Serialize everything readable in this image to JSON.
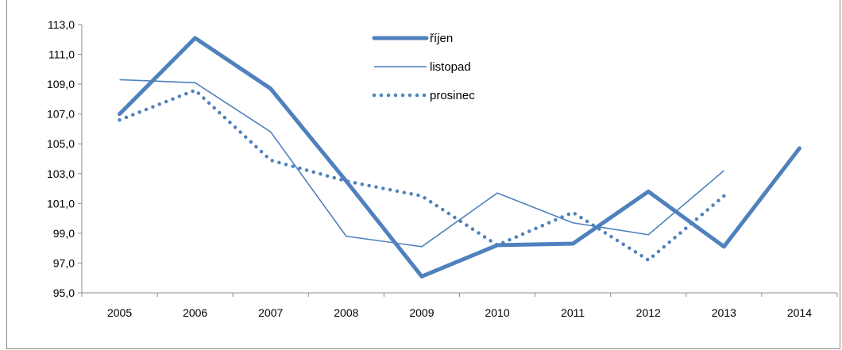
{
  "chart_data": {
    "type": "line",
    "title": "",
    "xlabel": "",
    "ylabel": "",
    "categories": [
      "2005",
      "2006",
      "2007",
      "2008",
      "2009",
      "2010",
      "2011",
      "2012",
      "2013",
      "2014"
    ],
    "ylim": [
      95.0,
      113.0
    ],
    "yticks": [
      "95,0",
      "97,0",
      "99,0",
      "101,0",
      "103,0",
      "105,0",
      "107,0",
      "109,0",
      "111,0",
      "113,0"
    ],
    "grid": false,
    "legend_position": "top-center",
    "series": [
      {
        "name": "říjen",
        "style": "thick",
        "color": "#4f81bd",
        "values": [
          107.0,
          112.1,
          108.7,
          102.5,
          96.1,
          98.2,
          98.3,
          101.8,
          98.1,
          104.7
        ]
      },
      {
        "name": "listopad",
        "style": "thin",
        "color": "#4f81bd",
        "values": [
          109.3,
          109.1,
          105.8,
          98.8,
          98.1,
          101.7,
          99.7,
          98.9,
          103.2,
          null
        ]
      },
      {
        "name": "prosinec",
        "style": "dotted",
        "color": "#4f81bd",
        "values": [
          106.6,
          108.6,
          103.9,
          102.5,
          101.5,
          98.2,
          100.4,
          97.2,
          101.5,
          null
        ]
      }
    ]
  }
}
